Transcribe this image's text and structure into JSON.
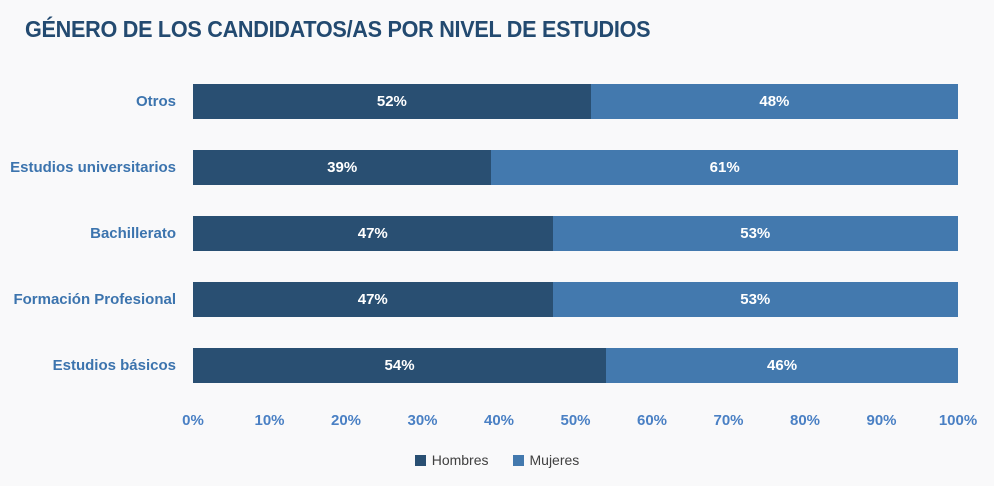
{
  "title": "GÉNERO DE LOS CANDIDATOS/AS POR NIVEL DE ESTUDIOS",
  "chart_data": {
    "type": "bar",
    "orientation": "horizontal-stacked",
    "title": "GÉNERO DE LOS CANDIDATOS/AS POR NIVEL DE ESTUDIOS",
    "categories": [
      "Otros",
      "Estudios universitarios",
      "Bachillerato",
      "Formación Profesional",
      "Estudios básicos"
    ],
    "series": [
      {
        "name": "Hombres",
        "color": "#294f72",
        "values": [
          52,
          39,
          47,
          47,
          54
        ]
      },
      {
        "name": "Mujeres",
        "color": "#4379ae",
        "values": [
          48,
          61,
          53,
          53,
          46
        ]
      }
    ],
    "value_suffix": "%",
    "x_ticks": [
      "0%",
      "10%",
      "20%",
      "30%",
      "40%",
      "50%",
      "60%",
      "70%",
      "80%",
      "90%",
      "100%"
    ],
    "xlim": [
      0,
      100
    ],
    "xlabel": "",
    "ylabel": "",
    "grid": false,
    "legend_position": "bottom"
  },
  "colors": {
    "background": "#f9f9fa",
    "title_text": "#234a70",
    "category_label": "#3c74ae",
    "tick_label": "#4a80c4",
    "legend_text": "#404040",
    "bar_value_text": "#ffffff"
  }
}
